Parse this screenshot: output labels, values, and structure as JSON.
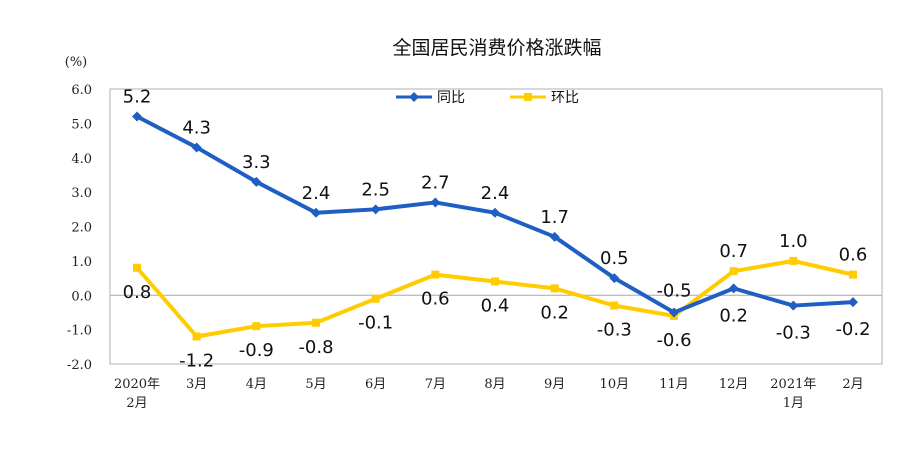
{
  "chart_data": {
    "type": "line",
    "title": "全国居民消费价格涨跌幅",
    "ylabel": "(%)",
    "ylim": [
      -2.0,
      6.0
    ],
    "yticks": [
      "-2.0",
      "-1.0",
      "0.0",
      "1.0",
      "2.0",
      "3.0",
      "4.0",
      "5.0",
      "6.0"
    ],
    "categories": [
      "2020年\n2月",
      "3月",
      "4月",
      "5月",
      "6月",
      "7月",
      "8月",
      "9月",
      "10月",
      "11月",
      "12月",
      "2021年\n1月",
      "2月"
    ],
    "series": [
      {
        "name": "同比",
        "color": "#1f5fc4",
        "marker": "diamond",
        "values": [
          5.2,
          4.3,
          3.3,
          2.4,
          2.5,
          2.7,
          2.4,
          1.7,
          0.5,
          -0.5,
          0.2,
          -0.3,
          -0.2
        ],
        "labels": [
          "5.2",
          "4.3",
          "3.3",
          "2.4",
          "2.5",
          "2.7",
          "2.4",
          "1.7",
          "0.5",
          "-0.5",
          "0.2",
          "-0.3",
          "-0.2"
        ]
      },
      {
        "name": "环比",
        "color": "#ffcc00",
        "marker": "square",
        "values": [
          0.8,
          -1.2,
          -0.9,
          -0.8,
          -0.1,
          0.6,
          0.4,
          0.2,
          -0.3,
          -0.6,
          0.7,
          1.0,
          0.6
        ],
        "labels": [
          "0.8",
          "-1.2",
          "-0.9",
          "-0.8",
          "-0.1",
          "0.6",
          "0.4",
          "0.2",
          "-0.3",
          "-0.6",
          "0.7",
          "1.0",
          "0.6"
        ]
      }
    ],
    "legend_position": "top-center",
    "grid": false
  }
}
